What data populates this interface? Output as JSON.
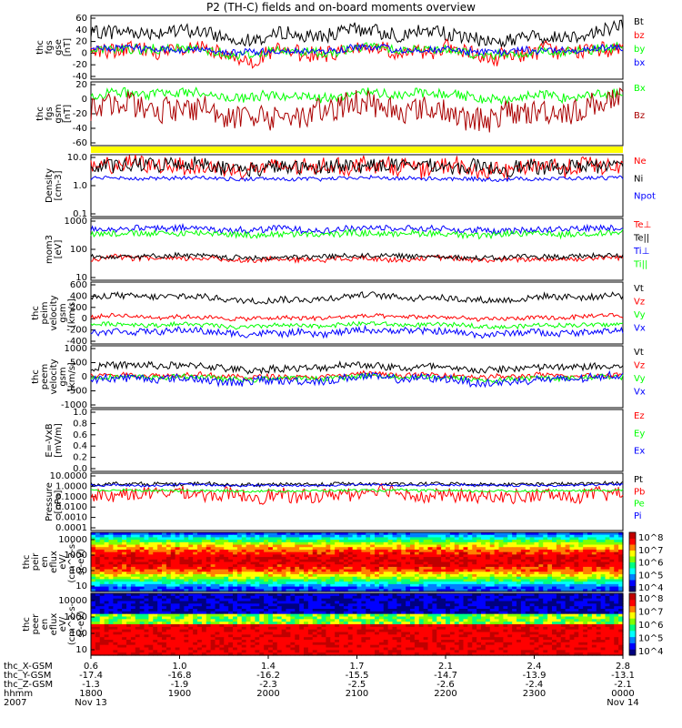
{
  "title": "P2 (TH-C) fields and on-board moments overview",
  "chart_data": [
    {
      "type": "line",
      "id": "fgs_gse",
      "ylabel": [
        "thc",
        "fgs",
        "gse",
        "[nT]"
      ],
      "yticks": [
        "60",
        "40",
        "20",
        "0",
        "-20",
        "-40"
      ],
      "ylim": [
        -45,
        65
      ],
      "series": [
        {
          "name": "Bt",
          "color": "#000000",
          "base": 32,
          "amp": 12
        },
        {
          "name": "bz",
          "color": "#ff0000",
          "base": 2,
          "amp": 14
        },
        {
          "name": "by",
          "color": "#00ff00",
          "base": 3,
          "amp": 8
        },
        {
          "name": "bx",
          "color": "#0000ff",
          "base": 5,
          "amp": 6
        }
      ]
    },
    {
      "type": "line",
      "id": "fgs_gsm",
      "ylabel": [
        "thc",
        "fgs",
        "gsm",
        "[nT]"
      ],
      "yticks": [
        "20",
        "0",
        "-20",
        "-40",
        "-60"
      ],
      "ylim": [
        -75,
        35
      ],
      "series": [
        {
          "name": "Bx",
          "color": "#00ff00",
          "base": 12,
          "amp": 8
        },
        {
          "name": "Bz",
          "color": "#aa0000",
          "base": -15,
          "amp": 22
        }
      ]
    },
    {
      "type": "bar",
      "id": "flag",
      "color": "#ffff00"
    },
    {
      "type": "line",
      "id": "density",
      "scale": "log",
      "ylabel": [
        "Density",
        "[cm-3]"
      ],
      "yticks": [
        "10.0",
        "1.0",
        "0.1"
      ],
      "ylim": [
        0.1,
        40
      ],
      "series": [
        {
          "name": "Ne",
          "color": "#ff0000",
          "base": 12,
          "amp": 0.35
        },
        {
          "name": "Ni",
          "color": "#000000",
          "base": 12,
          "amp": 0.3
        },
        {
          "name": "Npot",
          "color": "#0000ff",
          "base": 4,
          "amp": 0.08
        }
      ]
    },
    {
      "type": "line",
      "id": "temp",
      "scale": "log",
      "ylabel": [
        "mom3",
        "[eV]"
      ],
      "yticks": [
        "1000",
        "100",
        "10"
      ],
      "ylim": [
        5,
        5000
      ],
      "series": [
        {
          "name": "Te⊥",
          "color": "#ff0000",
          "base": 55,
          "amp": 0.12
        },
        {
          "name": "Te||",
          "color": "#000000",
          "base": 70,
          "amp": 0.12
        },
        {
          "name": "Ti⊥",
          "color": "#0000ff",
          "base": 1500,
          "amp": 0.15
        },
        {
          "name": "Ti||",
          "color": "#00ff00",
          "base": 900,
          "amp": 0.15
        }
      ]
    },
    {
      "type": "line",
      "id": "peim_v",
      "ylabel": [
        "thc",
        "peim",
        "velocity",
        "gsm",
        "[km/s]"
      ],
      "yticks": [
        "600",
        "400",
        "200",
        "0",
        "-200",
        "-400"
      ],
      "ylim": [
        -500,
        650
      ],
      "series": [
        {
          "name": "Vt",
          "color": "#000000",
          "base": 360,
          "amp": 60
        },
        {
          "name": "Vz",
          "color": "#ff0000",
          "base": -10,
          "amp": 40
        },
        {
          "name": "Vy",
          "color": "#00ff00",
          "base": -150,
          "amp": 40
        },
        {
          "name": "Vx",
          "color": "#0000ff",
          "base": -280,
          "amp": 60
        }
      ]
    },
    {
      "type": "line",
      "id": "peem_v",
      "ylabel": [
        "thc",
        "peem",
        "velocity",
        "gsm",
        "[km/s]"
      ],
      "yticks": [
        "1000",
        "500",
        "0",
        "-500",
        "-1000"
      ],
      "ylim": [
        -1500,
        1500
      ],
      "series": [
        {
          "name": "Vt",
          "color": "#000000",
          "base": 450,
          "amp": 180
        },
        {
          "name": "Vz",
          "color": "#ff0000",
          "base": 50,
          "amp": 120
        },
        {
          "name": "Vy",
          "color": "#00ff00",
          "base": -50,
          "amp": 120
        },
        {
          "name": "Vx",
          "color": "#0000ff",
          "base": -150,
          "amp": 200
        }
      ]
    },
    {
      "type": "line",
      "id": "efield",
      "ylabel": [
        "E=-VxB",
        "[mV/m]"
      ],
      "yticks": [
        "1.0",
        "0.8",
        "0.6",
        "0.4",
        "0.2",
        "0.0"
      ],
      "ylim": [
        0,
        1
      ],
      "series": [
        {
          "name": "Ez",
          "color": "#ff0000"
        },
        {
          "name": "Ey",
          "color": "#00ff00"
        },
        {
          "name": "Ex",
          "color": "#0000ff"
        }
      ]
    },
    {
      "type": "line",
      "id": "pressure",
      "scale": "log",
      "ylabel": [
        "Pressure",
        "[nPa]"
      ],
      "yticks": [
        "10.0000",
        "1.0000",
        "0.1000",
        "0.0100",
        "0.0010",
        "0.0001"
      ],
      "ylim": [
        0.0001,
        10
      ],
      "series": [
        {
          "name": "Pt",
          "color": "#000000",
          "base": 1.1,
          "amp": 0.15
        },
        {
          "name": "Pb",
          "color": "#ff0000",
          "base": 0.12,
          "amp": 0.6
        },
        {
          "name": "Pe",
          "color": "#00ff00",
          "base": 0.3,
          "amp": 0.1
        },
        {
          "name": "Pi",
          "color": "#0000ff",
          "base": 0.9,
          "amp": 0.1
        }
      ]
    },
    {
      "type": "heatmap",
      "id": "peir_spec",
      "ylabel": [
        "thc",
        "peir",
        "en",
        "eflux",
        "eV/",
        "(cm^2-s-",
        "sr-eV)"
      ],
      "yticks": [
        "10000",
        "1000",
        "100",
        "10"
      ],
      "colorbar_ticks": [
        "10^8",
        "10^7",
        "10^6",
        "10^5",
        "10^4"
      ]
    },
    {
      "type": "heatmap",
      "id": "peer_spec",
      "ylabel": [
        "thc",
        "peer",
        "en",
        "eflux",
        "eV/",
        "(cm^2-s-",
        "sr-eV)"
      ],
      "yticks": [
        "10000",
        "1000",
        "100",
        "10"
      ],
      "colorbar_ticks": [
        "10^8",
        "10^7",
        "10^6",
        "10^5",
        "10^4"
      ]
    }
  ],
  "footer": {
    "labels": [
      "thc_X-GSM",
      "thc_Y-GSM",
      "thc_Z-GSM",
      "hhmm",
      "2007"
    ],
    "columns": [
      [
        "0.6",
        "-17.4",
        "-1.3",
        "1800",
        "Nov 13"
      ],
      [
        "1.0",
        "-16.8",
        "-1.9",
        "1900",
        ""
      ],
      [
        "1.4",
        "-16.2",
        "-2.3",
        "2000",
        ""
      ],
      [
        "1.7",
        "-15.5",
        "-2.5",
        "2100",
        ""
      ],
      [
        "2.1",
        "-14.7",
        "-2.6",
        "2200",
        ""
      ],
      [
        "2.4",
        "-13.9",
        "-2.4",
        "2300",
        ""
      ],
      [
        "2.8",
        "-13.1",
        "-2.1",
        "0000",
        "Nov 14"
      ]
    ]
  }
}
